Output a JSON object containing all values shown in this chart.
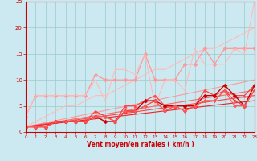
{
  "background_color": "#cce8f0",
  "grid_color": "#99cccc",
  "xlabel": "Vent moyen/en rafales ( km/h )",
  "xlim": [
    0,
    23
  ],
  "ylim": [
    0,
    25
  ],
  "xticks": [
    0,
    1,
    2,
    3,
    4,
    5,
    6,
    7,
    8,
    9,
    10,
    11,
    12,
    13,
    14,
    15,
    16,
    17,
    18,
    19,
    20,
    21,
    22,
    23
  ],
  "yticks": [
    0,
    5,
    10,
    15,
    20,
    25
  ],
  "lines": [
    {
      "x": [
        0,
        1,
        2,
        3,
        4,
        5,
        6,
        7,
        8,
        9,
        10,
        11,
        12,
        13,
        14,
        15,
        16,
        17,
        18,
        19,
        20,
        21,
        22,
        23
      ],
      "y": [
        1,
        2,
        3,
        4,
        5,
        5,
        6,
        7,
        7,
        8,
        9,
        10,
        11,
        12,
        12,
        13,
        14,
        15,
        16,
        16,
        17,
        18,
        19,
        20
      ],
      "color": "#ffbbbb",
      "marker": null,
      "markersize": 0,
      "linewidth": 0.8
    },
    {
      "x": [
        0,
        1,
        2,
        3,
        4,
        5,
        6,
        7,
        8,
        9,
        10,
        11,
        12,
        13,
        14,
        15,
        16,
        17,
        18,
        19,
        20,
        21,
        22,
        23
      ],
      "y": [
        3,
        7,
        7,
        7,
        7,
        7,
        7,
        11,
        10,
        10,
        10,
        10,
        15,
        10,
        10,
        10,
        13,
        13,
        16,
        13,
        16,
        16,
        16,
        16
      ],
      "color": "#ff9999",
      "marker": "D",
      "markersize": 2.5,
      "linewidth": 0.9
    },
    {
      "x": [
        0,
        1,
        2,
        3,
        4,
        5,
        6,
        7,
        8,
        9,
        10,
        11,
        12,
        13,
        14,
        15,
        16,
        17,
        18,
        19,
        20,
        21,
        22,
        23
      ],
      "y": [
        3,
        7,
        7,
        7,
        7,
        7,
        7,
        10,
        6,
        12,
        12,
        11,
        15,
        5,
        10,
        10,
        8,
        16,
        13,
        13,
        13,
        16,
        15,
        25
      ],
      "color": "#ffbbbb",
      "marker": null,
      "markersize": 0,
      "linewidth": 0.8
    },
    {
      "x": [
        0,
        23
      ],
      "y": [
        1,
        10
      ],
      "color": "#ff9999",
      "marker": null,
      "markersize": 0,
      "linewidth": 0.8
    },
    {
      "x": [
        0,
        23
      ],
      "y": [
        1,
        8
      ],
      "color": "#ff6666",
      "marker": null,
      "markersize": 0,
      "linewidth": 0.8
    },
    {
      "x": [
        0,
        23
      ],
      "y": [
        1,
        7
      ],
      "color": "#ff4444",
      "marker": null,
      "markersize": 0,
      "linewidth": 0.8
    },
    {
      "x": [
        0,
        23
      ],
      "y": [
        1,
        6
      ],
      "color": "#ee2222",
      "marker": null,
      "markersize": 0,
      "linewidth": 0.8
    },
    {
      "x": [
        0,
        1,
        2,
        3,
        4,
        5,
        6,
        7,
        8,
        9,
        10,
        11,
        12,
        13,
        14,
        15,
        16,
        17,
        18,
        19,
        20,
        21,
        22,
        23
      ],
      "y": [
        1,
        1,
        1,
        2,
        2,
        2,
        2,
        4,
        3,
        2,
        5,
        5,
        6,
        7,
        5,
        5,
        5,
        5,
        8,
        7,
        8,
        7,
        7,
        9
      ],
      "color": "#ff4444",
      "marker": "^",
      "markersize": 2.5,
      "linewidth": 0.9
    },
    {
      "x": [
        0,
        1,
        2,
        3,
        4,
        5,
        6,
        7,
        8,
        9,
        10,
        11,
        12,
        13,
        14,
        15,
        16,
        17,
        18,
        19,
        20,
        21,
        22,
        23
      ],
      "y": [
        1,
        1,
        1,
        2,
        2,
        2,
        2,
        3,
        2,
        2,
        4,
        4,
        6,
        6,
        5,
        5,
        5,
        5,
        7,
        7,
        9,
        7,
        5,
        9
      ],
      "color": "#cc0000",
      "marker": "D",
      "markersize": 2.5,
      "linewidth": 1.0
    },
    {
      "x": [
        0,
        1,
        2,
        3,
        4,
        5,
        6,
        7,
        8,
        9,
        10,
        11,
        12,
        13,
        14,
        15,
        16,
        17,
        18,
        19,
        20,
        21,
        22,
        23
      ],
      "y": [
        1,
        1,
        1,
        2,
        2,
        2,
        2,
        3,
        3,
        2,
        4,
        4,
        5,
        6,
        4,
        5,
        4,
        5,
        6,
        6,
        8,
        6,
        5,
        8
      ],
      "color": "#ff3333",
      "marker": "D",
      "markersize": 2,
      "linewidth": 0.8
    },
    {
      "x": [
        0,
        1,
        2,
        3,
        4,
        5,
        6,
        7,
        8,
        9,
        10,
        11,
        12,
        13,
        14,
        15,
        16,
        17,
        18,
        19,
        20,
        21,
        22,
        23
      ],
      "y": [
        1,
        1,
        1,
        2,
        2,
        2,
        2,
        3,
        3,
        2,
        4,
        4,
        5,
        6,
        4,
        5,
        4,
        5,
        6,
        6,
        8,
        5,
        5,
        8
      ],
      "color": "#ff5555",
      "marker": "D",
      "markersize": 2,
      "linewidth": 0.8
    }
  ]
}
